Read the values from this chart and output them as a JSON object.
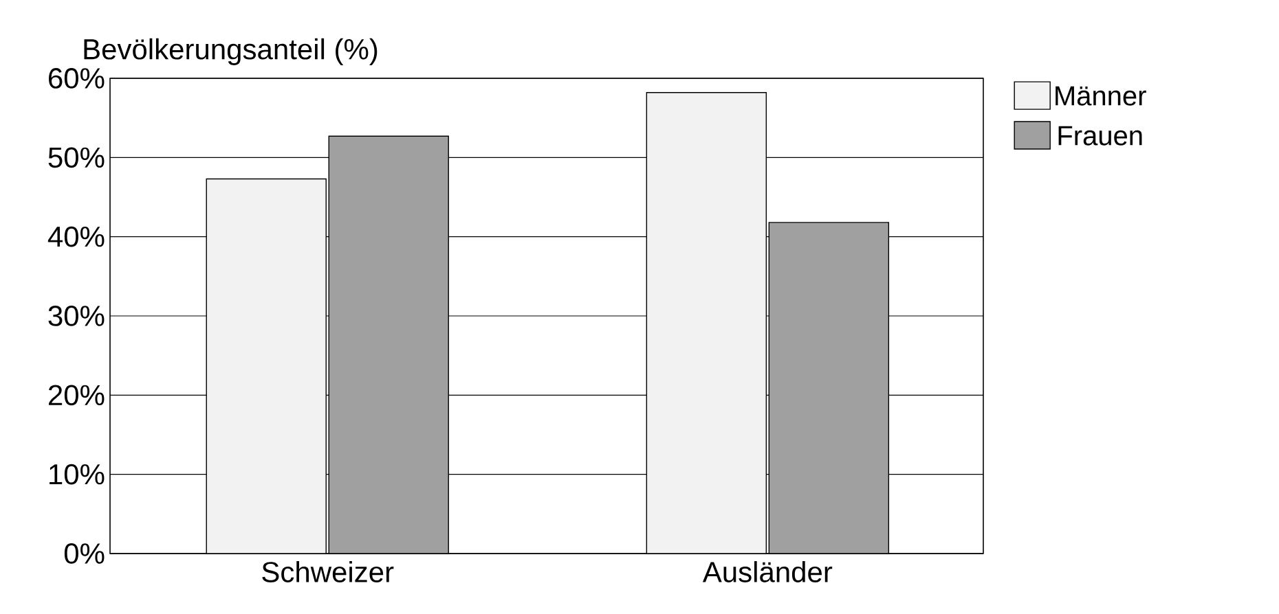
{
  "chart_data": {
    "type": "bar",
    "ylabel": "Bevölkerungsanteil (%)",
    "categories": [
      "Schweizer",
      "Ausländer"
    ],
    "series": [
      {
        "name": "Männer",
        "color": "#f2f2f2",
        "values": [
          47.3,
          58.2
        ]
      },
      {
        "name": "Frauen",
        "color": "#a0a0a0",
        "values": [
          52.7,
          41.8
        ]
      }
    ],
    "ylim": [
      0,
      60
    ],
    "yticks": [
      {
        "value": 0,
        "label": "0%"
      },
      {
        "value": 10,
        "label": "10%"
      },
      {
        "value": 20,
        "label": "20%"
      },
      {
        "value": 30,
        "label": "30%"
      },
      {
        "value": 40,
        "label": "40%"
      },
      {
        "value": 50,
        "label": "50%"
      },
      {
        "value": 60,
        "label": "60%"
      }
    ],
    "grid": "y",
    "legend": "top right"
  }
}
